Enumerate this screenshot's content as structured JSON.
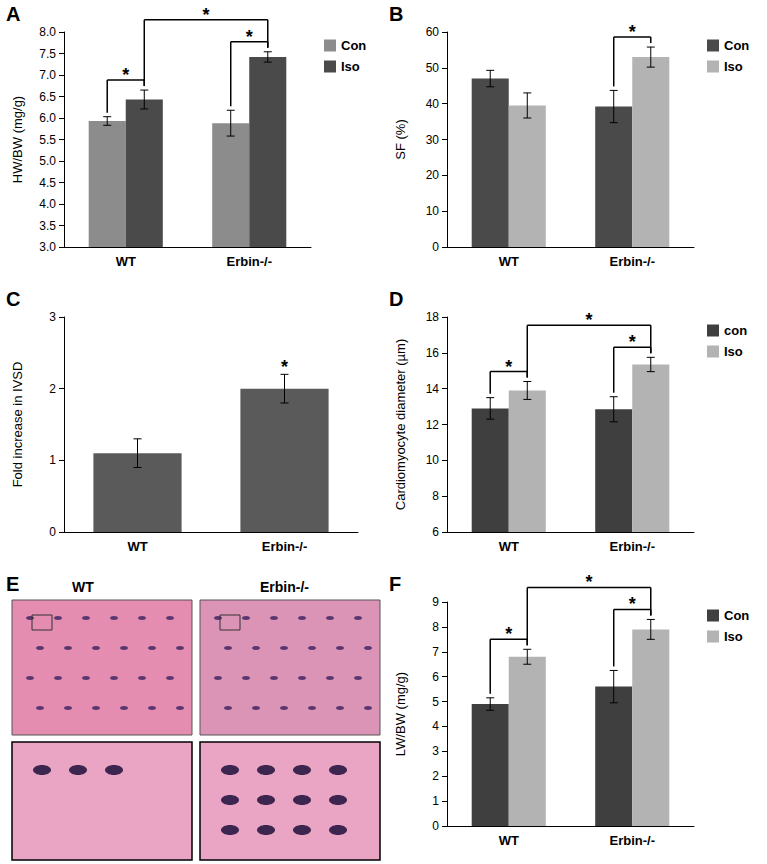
{
  "chart_data": [
    {
      "type": "bar",
      "panel": "A",
      "ylabel": "HW/BW (mg/g)",
      "categories": [
        "WT",
        "Erbin-/-"
      ],
      "series": [
        {
          "name": "Con",
          "color": "#8c8c8c",
          "values": [
            5.93,
            5.88
          ],
          "errors": [
            0.1,
            0.3
          ]
        },
        {
          "name": "Iso",
          "color": "#4a4a4a",
          "values": [
            6.43,
            7.42
          ],
          "errors": [
            0.22,
            0.12
          ]
        }
      ],
      "ylim": [
        3,
        8
      ],
      "yticks": [
        {
          "value": 3,
          "label": "3.0"
        },
        {
          "value": 3.5,
          "label": "3.5"
        },
        {
          "value": 4,
          "label": "4.0"
        },
        {
          "value": 4.5,
          "label": "4.5"
        },
        {
          "value": 5,
          "label": "5.0"
        },
        {
          "value": 5.5,
          "label": "5.5"
        },
        {
          "value": 6,
          "label": "6.0"
        },
        {
          "value": 6.5,
          "label": "6.5"
        },
        {
          "value": 7,
          "label": "7.0"
        },
        {
          "value": 7.5,
          "label": "7.5"
        },
        {
          "value": 8,
          "label": "8.0"
        }
      ],
      "significance": [
        {
          "from": [
            0,
            0
          ],
          "to": [
            0,
            1
          ],
          "label": "*"
        },
        {
          "from": [
            0,
            1
          ],
          "to": [
            1,
            1
          ],
          "label": "*"
        },
        {
          "from": [
            1,
            0
          ],
          "to": [
            1,
            1
          ],
          "label": "*"
        }
      ],
      "legend": "top-right",
      "grid": false
    },
    {
      "type": "bar",
      "panel": "B",
      "ylabel": "SF (%)",
      "categories": [
        "WT",
        "Erbin-/-"
      ],
      "series": [
        {
          "name": "Con",
          "color": "#4a4a4a",
          "values": [
            47,
            39.2
          ],
          "errors": [
            2.3,
            4.5
          ]
        },
        {
          "name": "Iso",
          "color": "#b3b3b3",
          "values": [
            39.5,
            53
          ],
          "errors": [
            3.5,
            2.8
          ]
        }
      ],
      "ylim": [
        0,
        60
      ],
      "yticks": [
        0,
        10,
        20,
        30,
        40,
        50,
        60
      ],
      "significance": [
        {
          "from": [
            1,
            0
          ],
          "to": [
            1,
            1
          ],
          "label": "*"
        }
      ],
      "legend": "top-right",
      "grid": false
    },
    {
      "type": "bar",
      "panel": "C",
      "ylabel": "Fold increase in IVSD",
      "categories": [
        "WT",
        "Erbin-/-"
      ],
      "series": [
        {
          "color": "#5a5a5a",
          "values": [
            1.1,
            2.0
          ],
          "errors": [
            0.2,
            0.2
          ]
        }
      ],
      "ylim": [
        0,
        3
      ],
      "yticks": [
        0,
        1,
        2,
        3
      ],
      "significance": [
        {
          "from": [
            1,
            0
          ],
          "to": [
            1,
            0
          ],
          "label": "*"
        }
      ],
      "grid": false
    },
    {
      "type": "bar",
      "panel": "D",
      "ylabel": "Cardiomyocyte diameter (µm)",
      "categories": [
        "WT",
        "Erbin-/-"
      ],
      "series": [
        {
          "name": "con",
          "color": "#3f3f3f",
          "values": [
            12.9,
            12.85
          ],
          "errors": [
            0.6,
            0.7
          ]
        },
        {
          "name": "Iso",
          "color": "#b3b3b3",
          "values": [
            13.9,
            15.35
          ],
          "errors": [
            0.5,
            0.4
          ]
        }
      ],
      "ylim": [
        6,
        18
      ],
      "yticks": [
        6,
        8,
        10,
        12,
        14,
        16,
        18
      ],
      "significance": [
        {
          "from": [
            0,
            0
          ],
          "to": [
            0,
            1
          ],
          "label": "*"
        },
        {
          "from": [
            0,
            1
          ],
          "to": [
            1,
            1
          ],
          "label": "*"
        },
        {
          "from": [
            1,
            0
          ],
          "to": [
            1,
            1
          ],
          "label": "*"
        }
      ],
      "legend": "top-right",
      "grid": false
    },
    {
      "type": "image",
      "panel": "E",
      "labels": [
        "WT",
        "Erbin-/-"
      ]
    },
    {
      "type": "bar",
      "panel": "F",
      "ylabel": "LW/BW (mg/g)",
      "categories": [
        "WT",
        "Erbin-/-"
      ],
      "series": [
        {
          "name": "Con",
          "color": "#3f3f3f",
          "values": [
            4.9,
            5.6
          ],
          "errors": [
            0.25,
            0.65
          ]
        },
        {
          "name": "Iso",
          "color": "#b3b3b3",
          "values": [
            6.8,
            7.9
          ],
          "errors": [
            0.3,
            0.4
          ]
        }
      ],
      "ylim": [
        0,
        9
      ],
      "yticks": [
        0,
        1,
        2,
        3,
        4,
        5,
        6,
        7,
        8,
        9
      ],
      "significance": [
        {
          "from": [
            0,
            0
          ],
          "to": [
            0,
            1
          ],
          "label": "*"
        },
        {
          "from": [
            0,
            1
          ],
          "to": [
            1,
            1
          ],
          "label": "*"
        },
        {
          "from": [
            1,
            0
          ],
          "to": [
            1,
            1
          ],
          "label": "*"
        }
      ],
      "legend": "top-right",
      "grid": false
    }
  ]
}
